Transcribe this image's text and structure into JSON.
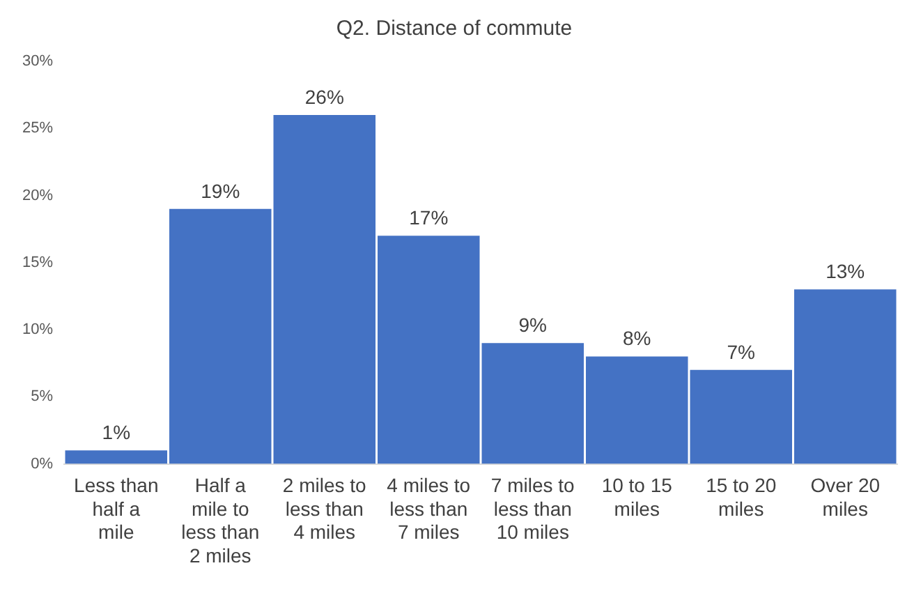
{
  "chart_data": {
    "type": "bar",
    "title": "Q2. Distance of commute",
    "categories": [
      "Less than half a mile",
      "Half a mile to less than 2 miles",
      "2 miles to less than 4 miles",
      "4 miles to less than 7 miles",
      "7 miles to less than 10 miles",
      "10 to 15 miles",
      "15 to 20 miles",
      "Over 20 miles"
    ],
    "values": [
      1,
      19,
      26,
      17,
      9,
      8,
      7,
      13
    ],
    "value_labels": [
      "1%",
      "19%",
      "26%",
      "17%",
      "9%",
      "8%",
      "7%",
      "13%"
    ],
    "color": "#4472c4",
    "ylim": [
      0,
      30
    ],
    "yticks": [
      {
        "value": 0,
        "label": "0%"
      },
      {
        "value": 5,
        "label": "5%"
      },
      {
        "value": 10,
        "label": "10%"
      },
      {
        "value": 15,
        "label": "15%"
      },
      {
        "value": 20,
        "label": "20%"
      },
      {
        "value": 25,
        "label": "25%"
      },
      {
        "value": 30,
        "label": "30%"
      }
    ],
    "grid": false,
    "legend": false
  }
}
